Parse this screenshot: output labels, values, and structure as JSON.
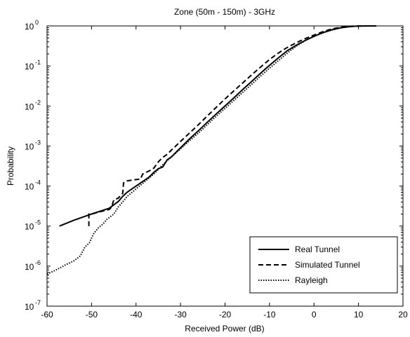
{
  "chart_data": {
    "type": "line",
    "title": "Zone (50m - 150m) - 3GHz",
    "xlabel": "Received Power (dB)",
    "ylabel": "Probability",
    "xlim": [
      -60,
      20
    ],
    "ylim": [
      1e-07,
      1
    ],
    "y_scale": "log",
    "grid": false,
    "legend_position": "bottom-right",
    "x_ticks": [
      "-60",
      "-50",
      "-40",
      "-30",
      "-20",
      "-10",
      "0",
      "10",
      "20"
    ],
    "y_ticks": [
      {
        "base": "10",
        "exp": "0"
      },
      {
        "base": "10",
        "exp": "-1"
      },
      {
        "base": "10",
        "exp": "-2"
      },
      {
        "base": "10",
        "exp": "-3"
      },
      {
        "base": "10",
        "exp": "-4"
      },
      {
        "base": "10",
        "exp": "-5"
      },
      {
        "base": "10",
        "exp": "-6"
      },
      {
        "base": "10",
        "exp": "-7"
      }
    ],
    "series": [
      {
        "name": "Real Tunnel",
        "style": "solid",
        "color": "#000000",
        "points": [
          [
            -57.2,
            1e-05
          ],
          [
            -54,
            1.4e-05
          ],
          [
            -50,
            2e-05
          ],
          [
            -46,
            2.8e-05
          ],
          [
            -45,
            3.4e-05
          ],
          [
            -44,
            4.1e-05
          ],
          [
            -43,
            5.5e-05
          ],
          [
            -42,
            7e-05
          ],
          [
            -41,
            8.4e-05
          ],
          [
            -40,
            0.0001
          ],
          [
            -38.5,
            0.00013
          ],
          [
            -37,
            0.00017
          ],
          [
            -36,
            0.00022
          ],
          [
            -35,
            0.00027
          ],
          [
            -34,
            0.0003
          ],
          [
            -33,
            0.00045
          ],
          [
            -32,
            0.00054
          ],
          [
            -30,
            0.0009
          ],
          [
            -28,
            0.0015
          ],
          [
            -26,
            0.0024
          ],
          [
            -24,
            0.0039
          ],
          [
            -22,
            0.0063
          ],
          [
            -20,
            0.01
          ],
          [
            -18,
            0.016
          ],
          [
            -16,
            0.026
          ],
          [
            -14,
            0.041
          ],
          [
            -12,
            0.066
          ],
          [
            -10,
            0.104
          ],
          [
            -8,
            0.16
          ],
          [
            -6,
            0.24
          ],
          [
            -4,
            0.33
          ],
          [
            -2,
            0.43
          ],
          [
            0,
            0.55
          ],
          [
            2,
            0.68
          ],
          [
            4,
            0.8
          ],
          [
            6,
            0.9
          ],
          [
            8,
            0.96
          ],
          [
            10,
            0.99
          ],
          [
            12,
            1.0
          ],
          [
            14,
            1.0
          ]
        ]
      },
      {
        "name": "Simulated Tunnel",
        "style": "dashed",
        "color": "#000000",
        "points": [
          [
            -50.6,
            1e-05
          ],
          [
            -50.6,
            2e-05
          ],
          [
            -50,
            2e-05
          ],
          [
            -48,
            2.3e-05
          ],
          [
            -46,
            2.6e-05
          ],
          [
            -45.5,
            3e-05
          ],
          [
            -45,
            4.5e-05
          ],
          [
            -44,
            5e-05
          ],
          [
            -43,
            6.5e-05
          ],
          [
            -42.8,
            0.00012
          ],
          [
            -42,
            0.000135
          ],
          [
            -41,
            0.00014
          ],
          [
            -39,
            0.00015
          ],
          [
            -38.5,
            0.0002
          ],
          [
            -37,
            0.00024
          ],
          [
            -36,
            0.00028
          ],
          [
            -35,
            0.0004
          ],
          [
            -34,
            0.00052
          ],
          [
            -33,
            0.00062
          ],
          [
            -32,
            0.0008
          ],
          [
            -30,
            0.0013
          ],
          [
            -28,
            0.0021
          ],
          [
            -26,
            0.0034
          ],
          [
            -24,
            0.0056
          ],
          [
            -22,
            0.0092
          ],
          [
            -20,
            0.015
          ],
          [
            -18,
            0.024
          ],
          [
            -16,
            0.038
          ],
          [
            -14,
            0.06
          ],
          [
            -12,
            0.094
          ],
          [
            -10,
            0.145
          ],
          [
            -8,
            0.21
          ],
          [
            -6,
            0.29
          ],
          [
            -4,
            0.38
          ],
          [
            -2,
            0.48
          ],
          [
            0,
            0.59
          ],
          [
            2,
            0.72
          ],
          [
            4,
            0.84
          ],
          [
            6,
            0.93
          ],
          [
            8,
            0.98
          ],
          [
            10,
            1.0
          ],
          [
            13,
            1.0
          ]
        ]
      },
      {
        "name": "Rayleigh",
        "style": "dotted",
        "color": "#000000",
        "points": [
          [
            -60,
            6.3e-07
          ],
          [
            -58,
            8e-07
          ],
          [
            -56,
            1.05e-06
          ],
          [
            -54,
            1.35e-06
          ],
          [
            -52.5,
            1.8e-06
          ],
          [
            -51.5,
            3e-06
          ],
          [
            -50.5,
            3.8e-06
          ],
          [
            -49.5,
            6.5e-06
          ],
          [
            -48.5,
            9e-06
          ],
          [
            -47.5,
            1.1e-05
          ],
          [
            -46.5,
            1.5e-05
          ],
          [
            -45,
            2e-05
          ],
          [
            -44,
            3e-05
          ],
          [
            -43,
            4e-05
          ],
          [
            -42,
            5.5e-05
          ],
          [
            -40,
            8.5e-05
          ],
          [
            -38,
            0.00013
          ],
          [
            -36,
            0.0002
          ],
          [
            -34,
            0.00034
          ],
          [
            -32,
            0.00054
          ],
          [
            -30,
            0.00085
          ],
          [
            -28,
            0.00135
          ],
          [
            -26,
            0.0021
          ],
          [
            -24,
            0.0034
          ],
          [
            -22,
            0.0055
          ],
          [
            -20,
            0.0087
          ],
          [
            -18,
            0.0138
          ],
          [
            -16,
            0.022
          ],
          [
            -14,
            0.035
          ],
          [
            -12,
            0.056
          ],
          [
            -10,
            0.088
          ],
          [
            -8,
            0.136
          ],
          [
            -6,
            0.21
          ],
          [
            -4,
            0.31
          ],
          [
            -2,
            0.43
          ],
          [
            0,
            0.55
          ],
          [
            2,
            0.67
          ],
          [
            4,
            0.79
          ],
          [
            6,
            0.89
          ],
          [
            8,
            0.96
          ],
          [
            10,
            0.99
          ],
          [
            14,
            1.0
          ]
        ]
      }
    ]
  }
}
